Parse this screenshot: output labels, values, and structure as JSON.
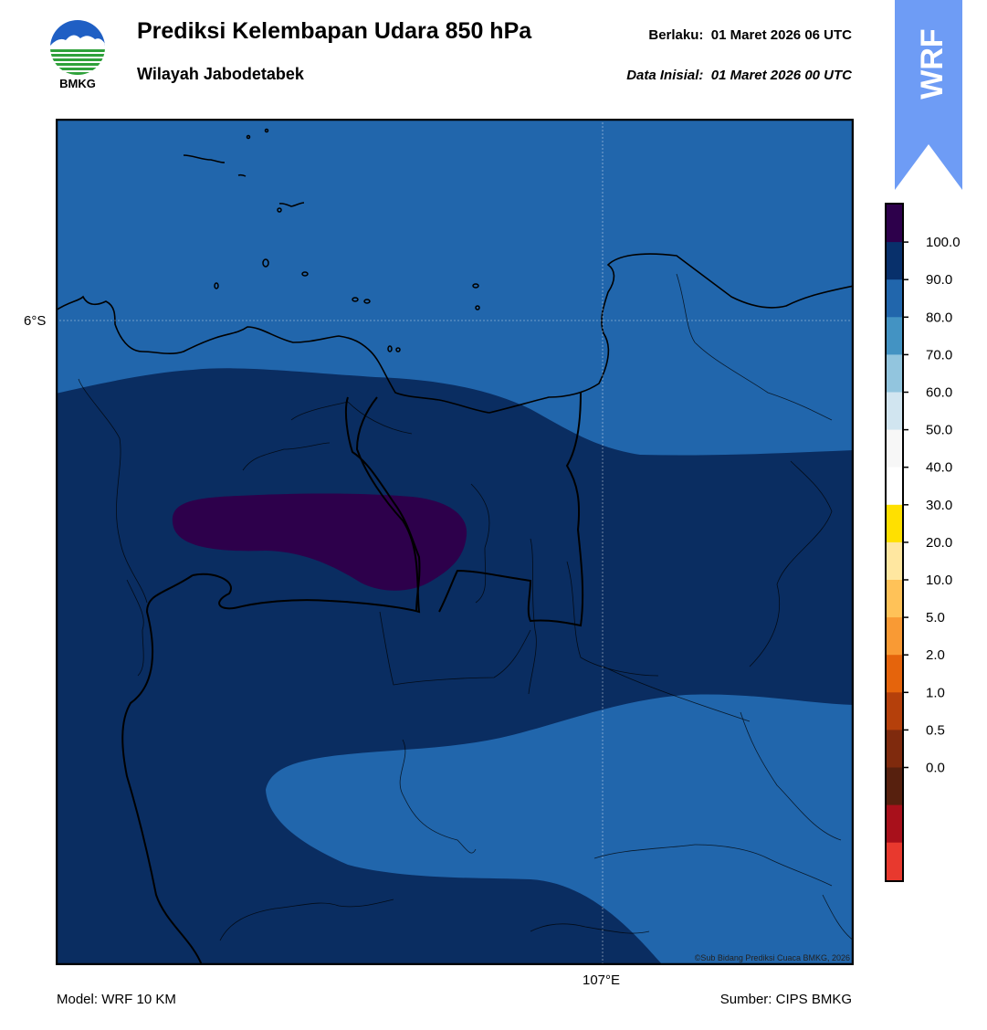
{
  "logo": {
    "icon": "bmkg-logo-icon",
    "text": "BMKG"
  },
  "header": {
    "title": "Prediksi Kelembapan Udara 850 hPa",
    "subtitle": "Wilayah Jabodetabek",
    "valid_label": "Berlaku:",
    "valid_time": "01 Maret 2026 06 UTC",
    "init_label": "Data Inisial:",
    "init_time": "01 Maret 2026 00 UTC"
  },
  "badge": {
    "text": "WRF",
    "color": "#6e9cf5"
  },
  "map": {
    "lat_label": "6°S",
    "lon_label": "107°E",
    "copyright": "©Sub Bidang Prediksi Cuaca BMKG, 2026",
    "fill_colors": {
      "90-100": "#0a2d61",
      "80-90": "#2166ac",
      "100+": "#2d004b"
    }
  },
  "colorbar": {
    "ticks": [
      "100.0",
      "90.0",
      "80.0",
      "70.0",
      "60.0",
      "50.0",
      "40.0",
      "30.0",
      "20.0",
      "10.0",
      "5.0",
      "2.0",
      "1.0",
      "0.5",
      "0.0"
    ],
    "colors": [
      "#2d004b",
      "#08306b",
      "#2166ac",
      "#4393c3",
      "#92c5de",
      "#d1e5f0",
      "#f7f7f7",
      "#ffffff",
      "#ffe000",
      "#ffe7a0",
      "#ffc258",
      "#f99a34",
      "#e5640c",
      "#b5400b",
      "#7f2a0d",
      "#57200e",
      "#a8101b",
      "#e8392e"
    ]
  },
  "footer": {
    "model": "Model: WRF 10 KM",
    "source": "Sumber: CIPS BMKG"
  }
}
